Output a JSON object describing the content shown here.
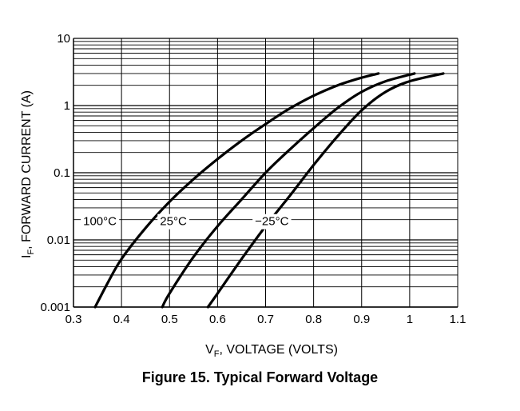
{
  "caption": "Figure 15. Typical Forward Voltage",
  "chart_data": {
    "type": "line",
    "title": "",
    "xlabel": {
      "main": "V",
      "sub": "F",
      "rest": ", VOLTAGE (VOLTS)"
    },
    "ylabel": {
      "main": "I",
      "sub": "F",
      "rest": ", FORWARD CURRENT (A)"
    },
    "x_scale": "linear",
    "y_scale": "log",
    "xlim": [
      0.3,
      1.1
    ],
    "ylim": [
      0.001,
      10
    ],
    "grid": true,
    "x_ticks": [
      {
        "value": 0.3,
        "label": "0.3"
      },
      {
        "value": 0.4,
        "label": "0.4"
      },
      {
        "value": 0.5,
        "label": "0.5"
      },
      {
        "value": 0.6,
        "label": "0.6"
      },
      {
        "value": 0.7,
        "label": "0.7"
      },
      {
        "value": 0.8,
        "label": "0.8"
      },
      {
        "value": 0.9,
        "label": "0.9"
      },
      {
        "value": 1.0,
        "label": "1"
      },
      {
        "value": 1.1,
        "label": "1.1"
      }
    ],
    "y_ticks": [
      {
        "value": 0.001,
        "label": "0.001"
      },
      {
        "value": 0.01,
        "label": "0.01"
      },
      {
        "value": 0.1,
        "label": "0.1"
      },
      {
        "value": 1,
        "label": "1"
      },
      {
        "value": 10,
        "label": "10"
      }
    ],
    "series": [
      {
        "name": "100°C",
        "label_pos": {
          "x": 0.355,
          "y": 0.0165
        },
        "points": [
          [
            0.345,
            0.001
          ],
          [
            0.37,
            0.0022
          ],
          [
            0.4,
            0.0052
          ],
          [
            0.45,
            0.015
          ],
          [
            0.5,
            0.037
          ],
          [
            0.55,
            0.08
          ],
          [
            0.6,
            0.16
          ],
          [
            0.65,
            0.3
          ],
          [
            0.7,
            0.53
          ],
          [
            0.75,
            0.9
          ],
          [
            0.8,
            1.4
          ],
          [
            0.85,
            2.0
          ],
          [
            0.9,
            2.6
          ],
          [
            0.935,
            3.0
          ]
        ]
      },
      {
        "name": "25°C",
        "label_pos": {
          "x": 0.508,
          "y": 0.0165
        },
        "points": [
          [
            0.485,
            0.001
          ],
          [
            0.5,
            0.0016
          ],
          [
            0.55,
            0.0056
          ],
          [
            0.6,
            0.016
          ],
          [
            0.65,
            0.04
          ],
          [
            0.7,
            0.1
          ],
          [
            0.75,
            0.22
          ],
          [
            0.8,
            0.46
          ],
          [
            0.85,
            0.92
          ],
          [
            0.9,
            1.6
          ],
          [
            0.95,
            2.3
          ],
          [
            1.01,
            3.0
          ]
        ]
      },
      {
        "name": "−25°C",
        "label_pos": {
          "x": 0.713,
          "y": 0.0165
        },
        "points": [
          [
            0.58,
            0.001
          ],
          [
            0.6,
            0.0016
          ],
          [
            0.65,
            0.0052
          ],
          [
            0.7,
            0.016
          ],
          [
            0.75,
            0.045
          ],
          [
            0.8,
            0.13
          ],
          [
            0.85,
            0.35
          ],
          [
            0.9,
            0.85
          ],
          [
            0.95,
            1.6
          ],
          [
            1.0,
            2.3
          ],
          [
            1.07,
            3.0
          ]
        ]
      }
    ]
  }
}
